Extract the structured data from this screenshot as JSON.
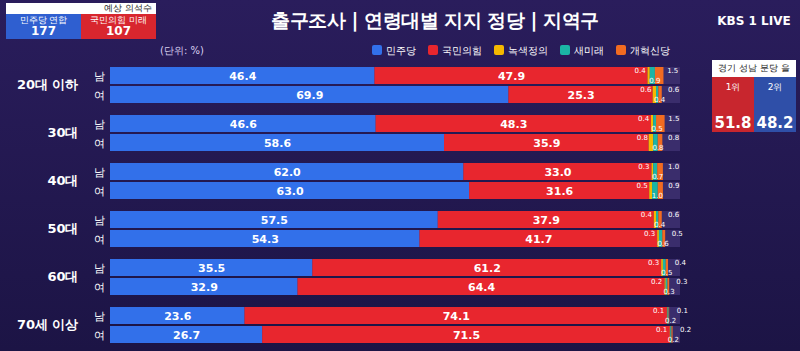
{
  "chart_data": {
    "type": "bar",
    "title": "출구조사 | 연령대별 지지 정당 | 지역구",
    "subtitle": "(단위: %)",
    "orientation": "horizontal",
    "stacked": true,
    "data_labels": true,
    "tick_labels": "y",
    "legend": "top",
    "groups": [
      "20대 이하",
      "30대",
      "40대",
      "50대",
      "60대",
      "70세 이상"
    ],
    "categories": [
      "남",
      "여",
      "남",
      "여",
      "남",
      "여",
      "남",
      "여",
      "남",
      "여",
      "남",
      "여"
    ],
    "xlim": [
      0,
      100
    ],
    "series": [
      {
        "name": "민주당",
        "color": "#3270ea",
        "values": [
          46.4,
          69.9,
          46.6,
          58.6,
          62.0,
          63.0,
          57.5,
          54.3,
          35.5,
          32.9,
          23.6,
          26.7
        ],
        "value_labels": [
          "46.4",
          "69.9",
          "46.6",
          "58.6",
          "62.0",
          "63.0",
          "57.5",
          "54.3",
          "35.5",
          "32.9",
          "23.6",
          "26.7"
        ]
      },
      {
        "name": "국민의힘",
        "color": "#e8262e",
        "values": [
          47.9,
          25.3,
          48.3,
          35.9,
          33.0,
          31.6,
          37.9,
          41.7,
          61.2,
          64.4,
          74.1,
          71.5
        ],
        "value_labels": [
          "47.9",
          "25.3",
          "48.3",
          "35.9",
          "33.0",
          "31.6",
          "37.9",
          "41.7",
          "61.2",
          "64.4",
          "74.1",
          "71.5"
        ]
      },
      {
        "name": "녹색정의",
        "color": "#f5b800",
        "values": [
          0.4,
          0.6,
          0.4,
          0.8,
          0.3,
          0.5,
          0.4,
          0.3,
          0.3,
          0.2,
          0.1,
          0.1
        ],
        "value_labels": [
          "0.4",
          "0.6",
          "0.4",
          "0.8",
          "0.3",
          "0.5",
          "0.4",
          "0.3",
          "0.3",
          "0.2",
          "0.1",
          "0.1"
        ]
      },
      {
        "name": "새미래",
        "color": "#1bb5a5",
        "values": [
          0.9,
          0.4,
          0.5,
          0.8,
          0.7,
          1.0,
          0.4,
          0.6,
          0.5,
          0.3,
          0.2,
          0.2
        ],
        "value_labels": [
          "0.9",
          "0.4",
          "0.5",
          "0.8",
          "0.7",
          "1.0",
          "0.4",
          "0.6",
          "0.5",
          "0.3",
          "0.2",
          "0.2"
        ]
      },
      {
        "name": "개혁신당",
        "color": "#f26b21",
        "values": [
          1.5,
          0.6,
          1.5,
          0.8,
          1.0,
          0.9,
          0.6,
          0.5,
          0.4,
          0.3,
          0.1,
          0.2
        ],
        "value_labels": [
          "1.5",
          "0.6",
          "1.5",
          "0.8",
          "1.0",
          "0.9",
          "0.6",
          "0.5",
          "0.4",
          "0.3",
          "0.1",
          "0.2"
        ]
      }
    ],
    "annotations": [
      "예상 의석수",
      "민주당 연합",
      "177",
      "국민의힘 미래",
      "107",
      "KBS 1 LIVE",
      "경기 성남 분당 을",
      "1위",
      "51.8",
      "2위",
      "48.2"
    ]
  }
}
